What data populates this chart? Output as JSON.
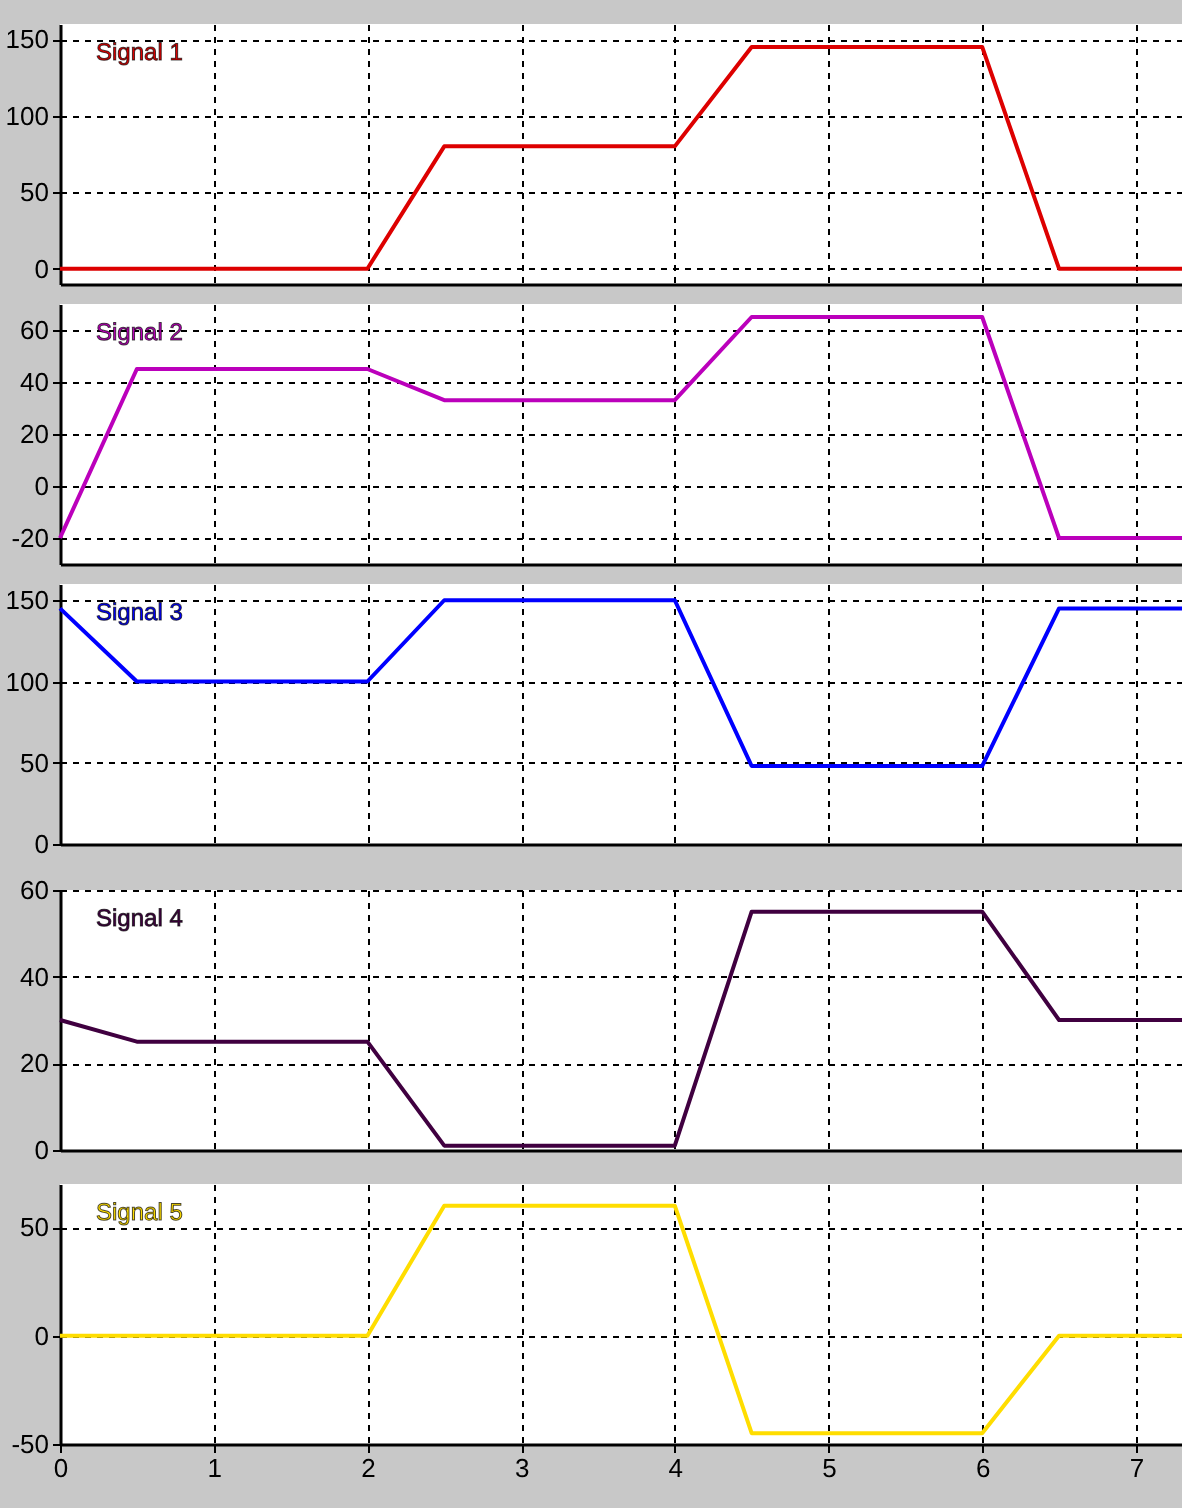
{
  "chart_data": [
    {
      "type": "line",
      "x": [
        0,
        0.5,
        2,
        2.5,
        4,
        4.5,
        6,
        6.5,
        7.3
      ],
      "series": [
        {
          "name": "Signal 1",
          "color": "#dd0000",
          "values": [
            0,
            0,
            0,
            80,
            80,
            145,
            145,
            0,
            0
          ]
        }
      ],
      "xlim": [
        0,
        7.3
      ],
      "xticks": [
        0,
        1,
        2,
        3,
        4,
        5,
        6,
        7
      ],
      "ylim": [
        -10,
        160
      ],
      "yticks": [
        0,
        50,
        100,
        150
      ],
      "grid": true,
      "tick_labels": "y"
    },
    {
      "type": "line",
      "x": [
        0,
        0.5,
        2,
        2.5,
        4,
        4.5,
        6,
        6.5,
        7.3
      ],
      "series": [
        {
          "name": "Signal 2",
          "color": "#bb00bb",
          "values": [
            -20,
            45,
            45,
            33,
            33,
            65,
            65,
            -20,
            -20
          ]
        }
      ],
      "xlim": [
        0,
        7.3
      ],
      "xticks": [
        0,
        1,
        2,
        3,
        4,
        5,
        6,
        7
      ],
      "ylim": [
        -30,
        70
      ],
      "yticks": [
        -20,
        0,
        20,
        40,
        60
      ],
      "grid": true,
      "tick_labels": "y"
    },
    {
      "type": "line",
      "x": [
        0,
        0.5,
        2,
        2.5,
        4,
        4.5,
        6,
        6.5,
        7.3
      ],
      "series": [
        {
          "name": "Signal 3",
          "color": "#0000ff",
          "values": [
            145,
            100,
            100,
            150,
            150,
            48,
            48,
            145,
            145
          ]
        }
      ],
      "xlim": [
        0,
        7.3
      ],
      "xticks": [
        0,
        1,
        2,
        3,
        4,
        5,
        6,
        7
      ],
      "ylim": [
        0,
        160
      ],
      "yticks": [
        0,
        50,
        100,
        150
      ],
      "grid": true,
      "tick_labels": "y"
    },
    {
      "type": "line",
      "x": [
        0,
        0.5,
        2,
        2.5,
        4,
        4.5,
        6,
        6.5,
        7.3
      ],
      "series": [
        {
          "name": "Signal 4",
          "color": "#400040",
          "values": [
            30,
            25,
            25,
            1,
            1,
            55,
            55,
            30,
            30
          ]
        }
      ],
      "xlim": [
        0,
        7.3
      ],
      "xticks": [
        0,
        1,
        2,
        3,
        4,
        5,
        6,
        7
      ],
      "ylim": [
        0,
        60
      ],
      "yticks": [
        0,
        20,
        40,
        60
      ],
      "grid": true,
      "tick_labels": "y"
    },
    {
      "type": "line",
      "x": [
        0,
        0.5,
        2,
        2.5,
        4,
        4.5,
        6,
        6.5,
        7.3
      ],
      "series": [
        {
          "name": "Signal 5",
          "color": "#ffdd00",
          "values": [
            0,
            0,
            0,
            60,
            60,
            -45,
            -45,
            0,
            0
          ]
        }
      ],
      "xlim": [
        0,
        7.3
      ],
      "xticks": [
        0,
        1,
        2,
        3,
        4,
        5,
        6,
        7
      ],
      "ylim": [
        -50,
        70
      ],
      "yticks": [
        -50,
        0,
        50
      ],
      "grid": true
    }
  ]
}
